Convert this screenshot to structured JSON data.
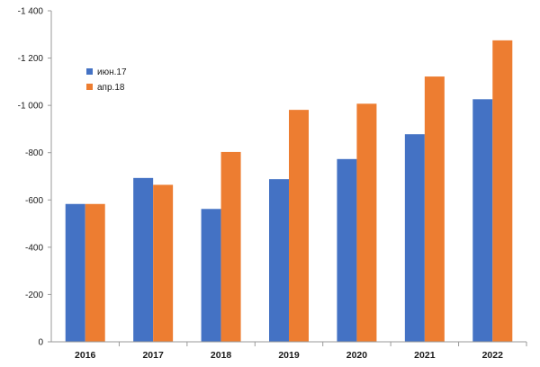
{
  "chart_data": {
    "type": "bar",
    "categories": [
      "2016",
      "2017",
      "2018",
      "2019",
      "2020",
      "2021",
      "2022"
    ],
    "series": [
      {
        "name": "июн.17",
        "color": "#4472C4",
        "values": [
          -583,
          -693,
          -562,
          -688,
          -773,
          -878,
          -1026
        ]
      },
      {
        "name": "апр.18",
        "color": "#ED7D31",
        "values": [
          -583,
          -664,
          -803,
          -981,
          -1007,
          -1122,
          -1275
        ]
      }
    ],
    "ylim": [
      0,
      -1400
    ],
    "yticks": [
      0,
      -200,
      -400,
      -600,
      -800,
      -1000,
      -1200,
      -1400
    ],
    "ytick_labels": [
      "0",
      "-200",
      "-400",
      "-600",
      "-800",
      "-1 000",
      "-1 200",
      "-1 400"
    ],
    "grid": false,
    "legend": "upper-left",
    "title": "",
    "xlabel": "",
    "ylabel": ""
  }
}
